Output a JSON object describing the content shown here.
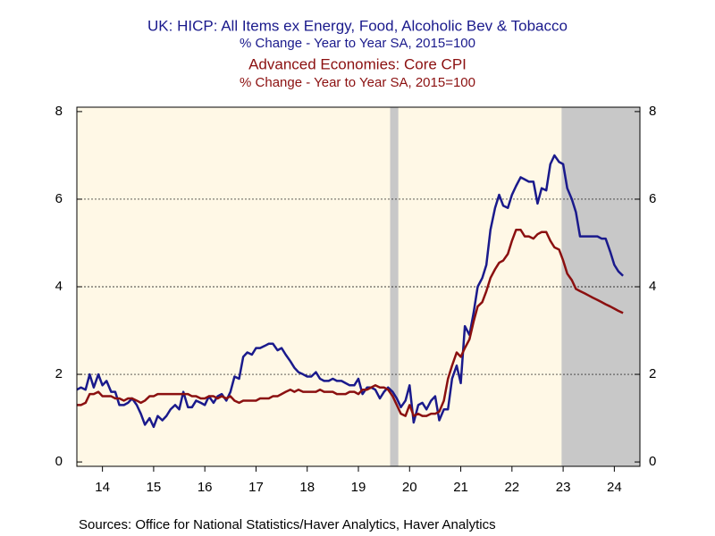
{
  "chart_data": {
    "type": "line",
    "titles": [
      "UK: HICP: All Items ex Energy, Food, Alcoholic Bev & Tobacco",
      "% Change - Year to Year   SA, 2015=100",
      "Advanced Economies: Core CPI",
      "% Change - Year to Year   SA, 2015=100"
    ],
    "title_colors": [
      "#1a1a8c",
      "#1a1a8c",
      "#8b1010",
      "#8b1010"
    ],
    "source": "Sources:  Office for National Statistics/Haver Analytics, Haver Analytics",
    "x": [
      2014.0,
      2014.08,
      2014.17,
      2014.25,
      2014.33,
      2014.42,
      2014.5,
      2014.58,
      2014.67,
      2014.75,
      2014.83,
      2014.92,
      2015.0,
      2015.08,
      2015.17,
      2015.25,
      2015.33,
      2015.42,
      2015.5,
      2015.58,
      2015.67,
      2015.75,
      2015.83,
      2015.92,
      2016.0,
      2016.08,
      2016.17,
      2016.25,
      2016.33,
      2016.42,
      2016.5,
      2016.58,
      2016.67,
      2016.75,
      2016.83,
      2016.92,
      2017.0,
      2017.08,
      2017.17,
      2017.25,
      2017.33,
      2017.42,
      2017.5,
      2017.58,
      2017.67,
      2017.75,
      2017.83,
      2017.92,
      2018.0,
      2018.08,
      2018.17,
      2018.25,
      2018.33,
      2018.42,
      2018.5,
      2018.58,
      2018.67,
      2018.75,
      2018.83,
      2018.92,
      2019.0,
      2019.08,
      2019.17,
      2019.25,
      2019.33,
      2019.42,
      2019.5,
      2019.58,
      2019.67,
      2019.75,
      2019.83,
      2019.92,
      2020.0,
      2020.08,
      2020.17,
      2020.25,
      2020.33,
      2020.42,
      2020.5,
      2020.58,
      2020.67,
      2020.75,
      2020.83,
      2020.92,
      2021.0,
      2021.08,
      2021.17,
      2021.25,
      2021.33,
      2021.42,
      2021.5,
      2021.58,
      2021.67,
      2021.75,
      2021.83,
      2021.92,
      2022.0,
      2022.08,
      2022.17,
      2022.25,
      2022.33,
      2022.42,
      2022.5,
      2022.58,
      2022.67,
      2022.75,
      2022.83,
      2022.92,
      2023.0,
      2023.08,
      2023.17,
      2023.25,
      2023.33,
      2023.42,
      2023.5,
      2023.58,
      2023.67,
      2023.75,
      2023.83,
      2023.92,
      2024.0,
      2024.08,
      2024.17,
      2024.25,
      2024.33,
      2024.42,
      2024.5,
      2024.58,
      2024.67
    ],
    "series": [
      {
        "name": "UK: HICP: All Items ex Energy, Food, Alcoholic Bev & Tobacco",
        "color": "#1a1a8c",
        "values": [
          1.65,
          1.7,
          1.65,
          2.0,
          1.7,
          2.0,
          1.75,
          1.85,
          1.6,
          1.6,
          1.3,
          1.3,
          1.35,
          1.45,
          1.3,
          1.1,
          0.85,
          1.0,
          0.8,
          1.05,
          0.95,
          1.05,
          1.2,
          1.3,
          1.2,
          1.6,
          1.25,
          1.25,
          1.4,
          1.35,
          1.3,
          1.5,
          1.35,
          1.5,
          1.55,
          1.4,
          1.6,
          1.95,
          1.9,
          2.4,
          2.5,
          2.45,
          2.6,
          2.6,
          2.65,
          2.7,
          2.7,
          2.55,
          2.6,
          2.45,
          2.3,
          2.15,
          2.05,
          2.0,
          1.95,
          1.95,
          2.05,
          1.9,
          1.85,
          1.85,
          1.9,
          1.85,
          1.85,
          1.8,
          1.75,
          1.75,
          1.9,
          1.55,
          1.7,
          1.7,
          1.65,
          1.45,
          1.6,
          1.7,
          1.6,
          1.45,
          1.25,
          1.4,
          1.75,
          0.9,
          1.3,
          1.35,
          1.2,
          1.4,
          1.5,
          0.95,
          1.2,
          1.2,
          1.9,
          2.2,
          1.8,
          3.1,
          2.9,
          3.4,
          4.0,
          4.2,
          4.5,
          5.3,
          5.8,
          6.1,
          5.85,
          5.8,
          6.1,
          6.3,
          6.5,
          6.45,
          6.4,
          6.4,
          5.9,
          6.25,
          6.2,
          6.8,
          7.0,
          6.85,
          6.8,
          6.25,
          6.0,
          5.7,
          5.15,
          5.15,
          5.15,
          5.15,
          5.15,
          5.1,
          5.1,
          4.8,
          4.5,
          4.35,
          4.25
        ]
      },
      {
        "name": "Advanced Economies: Core CPI",
        "color": "#8b1010",
        "values": [
          1.3,
          1.3,
          1.35,
          1.55,
          1.55,
          1.6,
          1.5,
          1.5,
          1.5,
          1.45,
          1.45,
          1.4,
          1.45,
          1.45,
          1.4,
          1.35,
          1.4,
          1.5,
          1.5,
          1.55,
          1.55,
          1.55,
          1.55,
          1.55,
          1.55,
          1.55,
          1.55,
          1.5,
          1.5,
          1.45,
          1.45,
          1.5,
          1.5,
          1.45,
          1.5,
          1.45,
          1.5,
          1.4,
          1.35,
          1.4,
          1.4,
          1.4,
          1.4,
          1.45,
          1.45,
          1.45,
          1.5,
          1.5,
          1.55,
          1.6,
          1.65,
          1.6,
          1.65,
          1.6,
          1.6,
          1.6,
          1.6,
          1.65,
          1.6,
          1.6,
          1.6,
          1.55,
          1.55,
          1.55,
          1.6,
          1.6,
          1.55,
          1.65,
          1.65,
          1.7,
          1.75,
          1.7,
          1.7,
          1.65,
          1.5,
          1.3,
          1.1,
          1.05,
          1.3,
          1.05,
          1.1,
          1.05,
          1.05,
          1.1,
          1.1,
          1.15,
          1.4,
          1.9,
          2.2,
          2.5,
          2.4,
          2.6,
          2.8,
          3.2,
          3.55,
          3.65,
          3.9,
          4.2,
          4.4,
          4.55,
          4.6,
          4.75,
          5.05,
          5.3,
          5.3,
          5.15,
          5.15,
          5.1,
          5.2,
          5.25,
          5.25,
          5.05,
          4.9,
          4.85,
          4.6,
          4.3,
          4.15,
          3.95,
          3.9,
          3.85,
          3.8,
          3.75,
          3.7,
          3.65,
          3.6,
          3.55,
          3.5,
          3.45,
          3.4
        ]
      }
    ],
    "xlim": [
      2014,
      2025
    ],
    "xticks": [
      {
        "value": 2014.5,
        "label": "14"
      },
      {
        "value": 2015.5,
        "label": "15"
      },
      {
        "value": 2016.5,
        "label": "16"
      },
      {
        "value": 2017.5,
        "label": "17"
      },
      {
        "value": 2018.5,
        "label": "18"
      },
      {
        "value": 2019.5,
        "label": "19"
      },
      {
        "value": 2020.5,
        "label": "20"
      },
      {
        "value": 2021.5,
        "label": "21"
      },
      {
        "value": 2022.5,
        "label": "22"
      },
      {
        "value": 2023.5,
        "label": "23"
      },
      {
        "value": 2024.5,
        "label": "24"
      }
    ],
    "ylim": [
      -0.1,
      8.1
    ],
    "yticks": [
      0,
      2,
      4,
      6,
      8
    ],
    "y2lim": [
      -0.1,
      8.1
    ],
    "y2ticks": [
      0,
      2,
      4,
      6,
      8
    ],
    "grid": true,
    "shaded_ranges": [
      [
        2020.12,
        2020.28
      ],
      [
        2023.47,
        2025
      ]
    ],
    "shade_color": "#c8c8c8",
    "plot_background": "#fff8e6"
  }
}
